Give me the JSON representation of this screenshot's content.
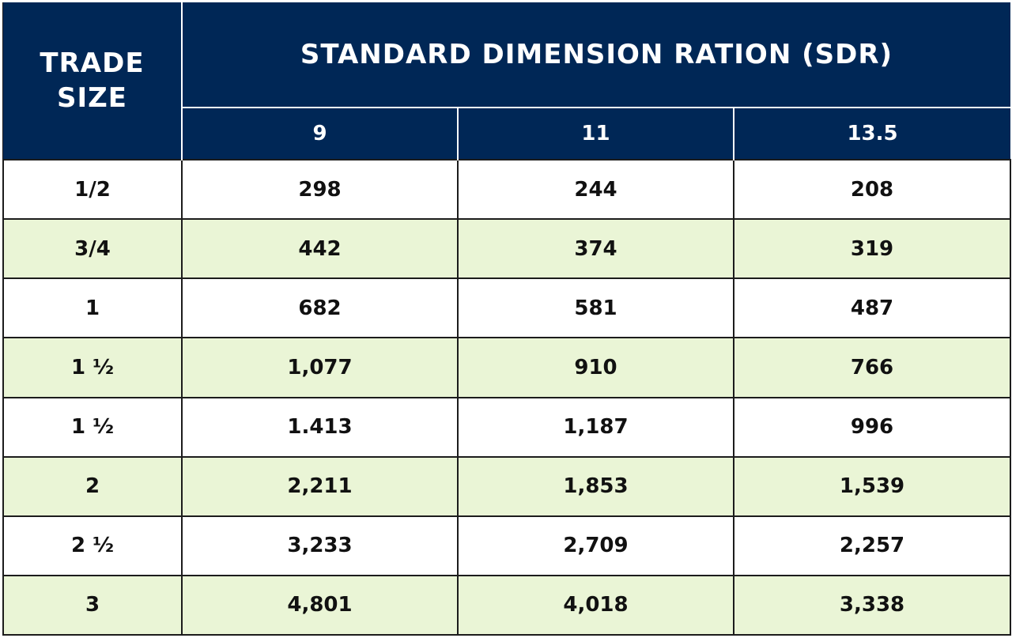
{
  "table": {
    "trade_size_label": "TRADE SIZE",
    "group_header": "STANDARD DIMENSION RATION (SDR)",
    "sdr_columns": [
      "9",
      "11",
      "13.5"
    ],
    "rows": [
      {
        "size": "1/2",
        "values": [
          "298",
          "244",
          "208"
        ]
      },
      {
        "size": "3/4",
        "values": [
          "442",
          "374",
          "319"
        ]
      },
      {
        "size": "1",
        "values": [
          "682",
          "581",
          "487"
        ]
      },
      {
        "size": "1 ½",
        "values": [
          "1,077",
          "910",
          "766"
        ]
      },
      {
        "size": "1 ½",
        "values": [
          "1.413",
          "1,187",
          "996"
        ]
      },
      {
        "size": "2",
        "values": [
          "2,211",
          "1,853",
          "1,539"
        ]
      },
      {
        "size": "2 ½",
        "values": [
          "3,233",
          "2,709",
          "2,257"
        ]
      },
      {
        "size": "3",
        "values": [
          "4,801",
          "4,018",
          "3,338"
        ]
      }
    ]
  },
  "colors": {
    "header_bg": "#002756",
    "row_alt_bg": "#eaf5d6",
    "row_bg": "#ffffff",
    "grid": "#1c1c1c"
  }
}
